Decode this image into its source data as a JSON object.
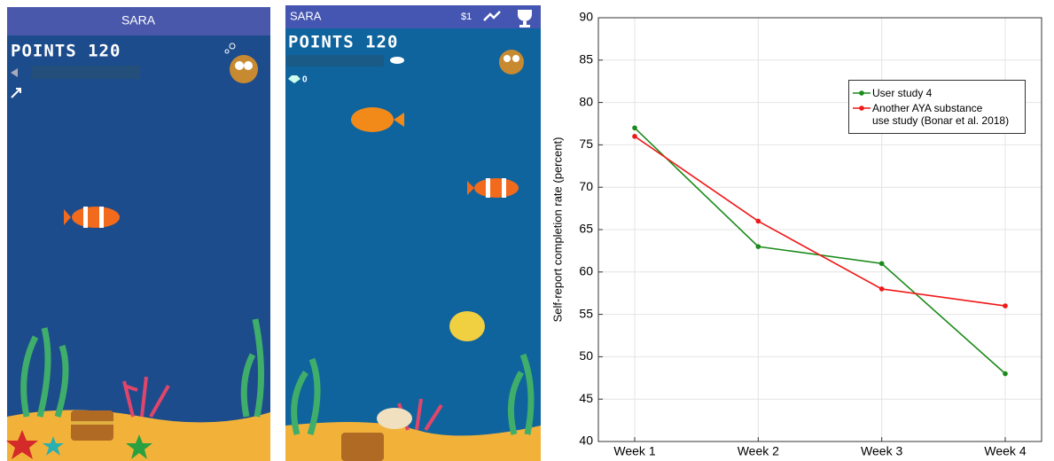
{
  "screens": [
    {
      "header": "SARA",
      "points_label": "POINTS 120"
    },
    {
      "header": "SARA",
      "price": "$1",
      "points_label": "POINTS 120",
      "gems": "0"
    }
  ],
  "chart_data": {
    "type": "line",
    "y_label": "Self-report completion rate (percent)",
    "categories": [
      "Week 1",
      "Week 2",
      "Week 3",
      "Week 4"
    ],
    "series": [
      {
        "name": "User study 4",
        "color": "#1a8a1a",
        "values": [
          77,
          63,
          61,
          48
        ]
      },
      {
        "name": "Another AYA substance\nuse study (Bonar et al. 2018)",
        "color": "#f01818",
        "values": [
          76,
          66,
          58,
          56
        ]
      }
    ],
    "ylim": [
      40,
      90
    ],
    "yticks": [
      40,
      45,
      50,
      55,
      60,
      65,
      70,
      75,
      80,
      85,
      90
    ],
    "grid": true
  }
}
